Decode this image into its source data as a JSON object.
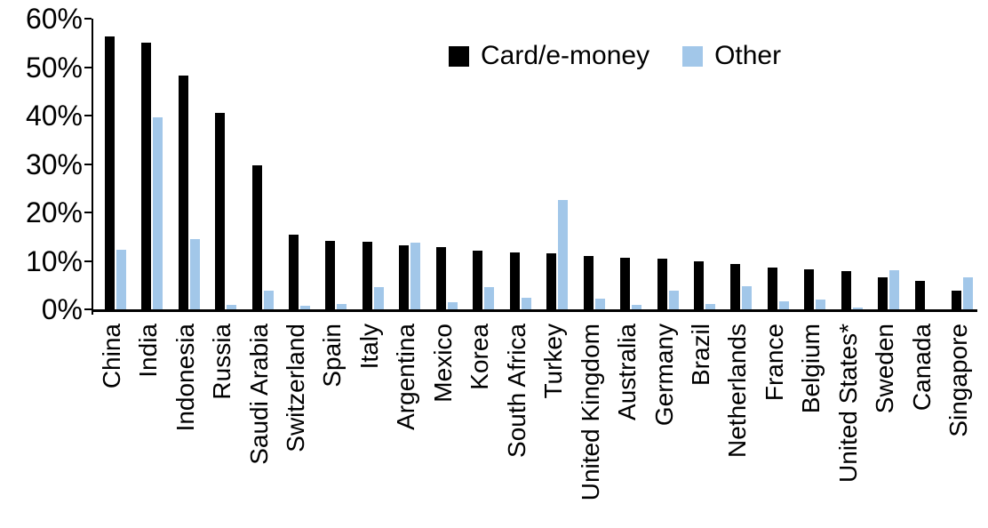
{
  "chart_data": {
    "type": "bar",
    "title": "",
    "xlabel": "",
    "ylabel": "",
    "ylim": [
      0,
      60
    ],
    "ytick_step": 10,
    "ytick_labels": [
      "60%",
      "50%",
      "40%",
      "30%",
      "20%",
      "10%",
      "0%"
    ],
    "grid": false,
    "legend_position": "top-center",
    "categories": [
      "China",
      "India",
      "Indonesia",
      "Russia",
      "Saudi Arabia",
      "Switzerland",
      "Spain",
      "Italy",
      "Argentina",
      "Mexico",
      "Korea",
      "South Africa",
      "Turkey",
      "United Kingdom",
      "Australia",
      "Germany",
      "Brazil",
      "Netherlands",
      "France",
      "Belgium",
      "United States*",
      "Sweden",
      "Canada",
      "Singapore"
    ],
    "series": [
      {
        "name": "Card/e-money",
        "color": "#000000",
        "values": [
          56.3,
          55.0,
          48.3,
          40.5,
          29.8,
          15.5,
          14.2,
          14.0,
          13.3,
          12.8,
          12.2,
          11.7,
          11.6,
          11.0,
          10.7,
          10.5,
          10.0,
          9.3,
          8.7,
          8.2,
          7.9,
          6.6,
          5.9,
          3.9
        ]
      },
      {
        "name": "Other",
        "color": "#A2C7E9",
        "values": [
          12.3,
          39.7,
          14.5,
          1.0,
          3.9,
          0.8,
          1.1,
          4.6,
          13.8,
          1.4,
          4.6,
          2.4,
          22.5,
          2.3,
          1.0,
          3.9,
          1.2,
          4.8,
          1.6,
          2.1,
          0.3,
          8.1,
          0.0,
          6.6
        ]
      }
    ]
  }
}
